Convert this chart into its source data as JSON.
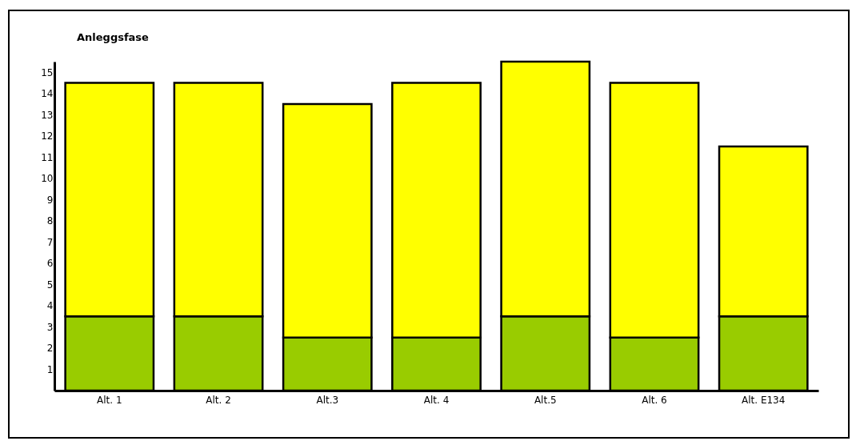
{
  "chart_data": {
    "type": "bar",
    "title": "Anleggsfase",
    "stacked": true,
    "categories": [
      "Alt. 1",
      "Alt. 2",
      "Alt.3",
      "Alt. 4",
      "Alt.5",
      "Alt. 6",
      "Alt. E134"
    ],
    "series": [
      {
        "color": "#99cc00",
        "values": [
          3.5,
          3.5,
          2.5,
          2.5,
          3.5,
          2.5,
          3.5
        ]
      },
      {
        "color": "#ffff00",
        "values": [
          11,
          11,
          11,
          12,
          12,
          12,
          8
        ]
      }
    ],
    "ylim": [
      0,
      15.5
    ],
    "yticks": [
      1,
      2,
      3,
      4,
      5,
      6,
      7,
      8,
      9,
      10,
      11,
      12,
      13,
      14,
      15
    ],
    "grid": false
  }
}
